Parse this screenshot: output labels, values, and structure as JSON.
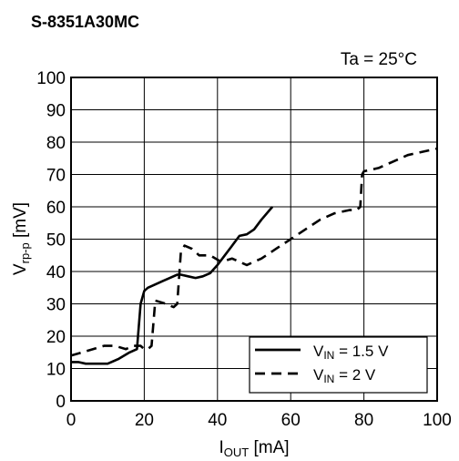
{
  "chart_data": {
    "type": "line",
    "title": "S-8351A30MC",
    "condition": "Ta = 25°C",
    "xlabel": {
      "main": "I",
      "sub": "OUT",
      "unit": " [mA]"
    },
    "ylabel": {
      "main": "V",
      "sub": "rp-p",
      "unit": " [mV]"
    },
    "xlim": [
      0,
      100
    ],
    "ylim": [
      0,
      100
    ],
    "xticks": [
      0,
      20,
      40,
      60,
      80,
      100
    ],
    "yticks": [
      0,
      10,
      20,
      30,
      40,
      50,
      60,
      70,
      80,
      90,
      100
    ],
    "grid": true,
    "legend_position": "bottom-right",
    "series": [
      {
        "name": "V_IN = 1.5 V",
        "legend": {
          "main": "V",
          "sub": "IN",
          "rest": " = 1.5 V"
        },
        "style": "solid",
        "color": "#000000",
        "x": [
          0,
          2,
          4,
          7,
          10,
          13,
          16,
          18,
          19,
          20,
          21,
          23,
          25,
          27,
          29,
          30,
          32,
          34,
          36,
          38,
          40,
          42,
          44,
          46,
          48,
          50,
          52,
          55
        ],
        "y": [
          12,
          12,
          11.5,
          11.5,
          11.5,
          13,
          15,
          16,
          30,
          34,
          35,
          36,
          37,
          38,
          39,
          39,
          38.5,
          38,
          38.5,
          39.5,
          42,
          45,
          48,
          51,
          51.5,
          53,
          56,
          60
        ]
      },
      {
        "name": "V_IN = 2 V",
        "legend": {
          "main": "V",
          "sub": "IN",
          "rest": " = 2 V"
        },
        "style": "dashed",
        "color": "#000000",
        "x": [
          0,
          3,
          6,
          9,
          12,
          15,
          17,
          19,
          20,
          21,
          22,
          23,
          26,
          28,
          29,
          30,
          31,
          33,
          35,
          38,
          41,
          44,
          48,
          52,
          56,
          60,
          64,
          68,
          72,
          76,
          78,
          79,
          79.5,
          80,
          84,
          88,
          92,
          96,
          100
        ],
        "y": [
          14,
          15,
          16,
          17,
          17,
          16,
          17,
          17,
          16,
          16,
          17,
          31,
          30,
          29,
          30,
          46,
          48,
          47,
          45,
          45,
          43,
          44,
          42,
          44,
          47,
          50,
          53,
          56,
          58,
          59,
          59,
          60,
          70,
          71,
          72,
          74,
          76,
          77,
          78
        ]
      }
    ]
  }
}
